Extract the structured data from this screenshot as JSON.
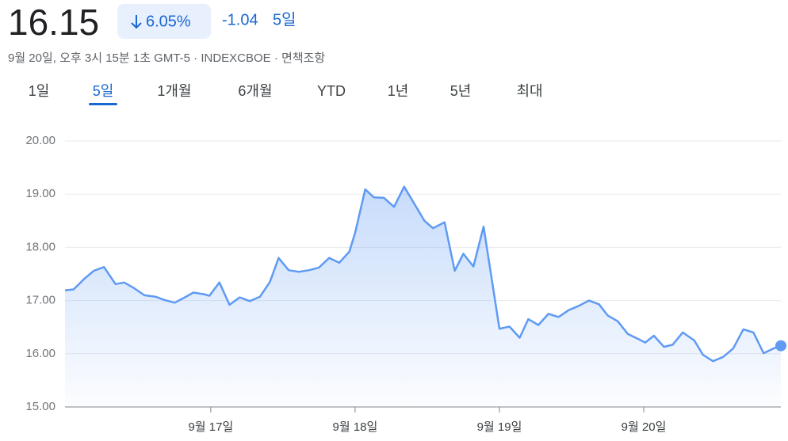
{
  "header": {
    "price": "16.15",
    "change_percent": "6.05%",
    "change": "-1.04",
    "period": "5일",
    "timestamp": "9월 20일, 오후 3시 15분 1초 GMT-5 · INDEXCBOE · 면책조항"
  },
  "tabs": [
    "1일",
    "5일",
    "1개월",
    "6개월",
    "YTD",
    "1년",
    "5년",
    "최대"
  ],
  "selected_tab": 1,
  "chart_data": {
    "type": "line",
    "color": "#5f9af3",
    "x": [
      -0.01,
      0.05,
      0.12,
      0.19,
      0.26,
      0.34,
      0.4,
      0.47,
      0.54,
      0.62,
      0.68,
      0.75,
      0.82,
      0.88,
      0.95,
      0.99,
      1.06,
      1.13,
      1.2,
      1.27,
      1.34,
      1.41,
      1.47,
      1.54,
      1.61,
      1.68,
      1.75,
      1.82,
      1.89,
      1.96,
      2.0,
      2.07,
      2.13,
      2.2,
      2.27,
      2.34,
      2.41,
      2.48,
      2.54,
      2.62,
      2.69,
      2.75,
      2.82,
      2.89,
      3.0,
      3.07,
      3.14,
      3.2,
      3.27,
      3.34,
      3.41,
      3.48,
      3.55,
      3.62,
      3.69,
      3.75,
      3.82,
      3.89,
      3.96,
      4.01,
      4.07,
      4.14,
      4.2,
      4.27,
      4.35,
      4.41,
      4.48,
      4.55,
      4.62,
      4.69,
      4.76,
      4.83,
      4.9,
      4.95
    ],
    "values": [
      17.19,
      17.21,
      17.4,
      17.56,
      17.63,
      17.31,
      17.34,
      17.23,
      17.1,
      17.07,
      17.01,
      16.96,
      17.06,
      17.15,
      17.12,
      17.09,
      17.34,
      16.92,
      17.06,
      16.99,
      17.07,
      17.35,
      17.8,
      17.57,
      17.54,
      17.57,
      17.62,
      17.8,
      17.71,
      17.92,
      18.27,
      19.09,
      18.94,
      18.93,
      18.76,
      19.14,
      18.82,
      18.5,
      18.36,
      18.47,
      17.56,
      17.88,
      17.64,
      18.39,
      16.47,
      16.51,
      16.3,
      16.65,
      16.54,
      16.75,
      16.69,
      16.82,
      16.9,
      17.0,
      16.93,
      16.72,
      16.61,
      16.37,
      16.28,
      16.21,
      16.34,
      16.13,
      16.17,
      16.4,
      16.25,
      15.98,
      15.86,
      15.94,
      16.1,
      16.46,
      16.4,
      16.01,
      16.1,
      16.15
    ],
    "xlim": [
      -0.01,
      4.95
    ],
    "xticks": [
      {
        "value": 1,
        "label": "9월 17일"
      },
      {
        "value": 2,
        "label": "9월 18일"
      },
      {
        "value": 3,
        "label": "9월 19일"
      },
      {
        "value": 4,
        "label": "9월 20일"
      }
    ],
    "ylim": [
      15,
      20
    ],
    "yticks": [
      {
        "value": 15,
        "label": "15.00"
      },
      {
        "value": 16,
        "label": "16.00"
      },
      {
        "value": 17,
        "label": "17.00"
      },
      {
        "value": 18,
        "label": "18.00"
      },
      {
        "value": 19,
        "label": "19.00"
      },
      {
        "value": 20,
        "label": "20.00"
      }
    ],
    "grid": true
  }
}
